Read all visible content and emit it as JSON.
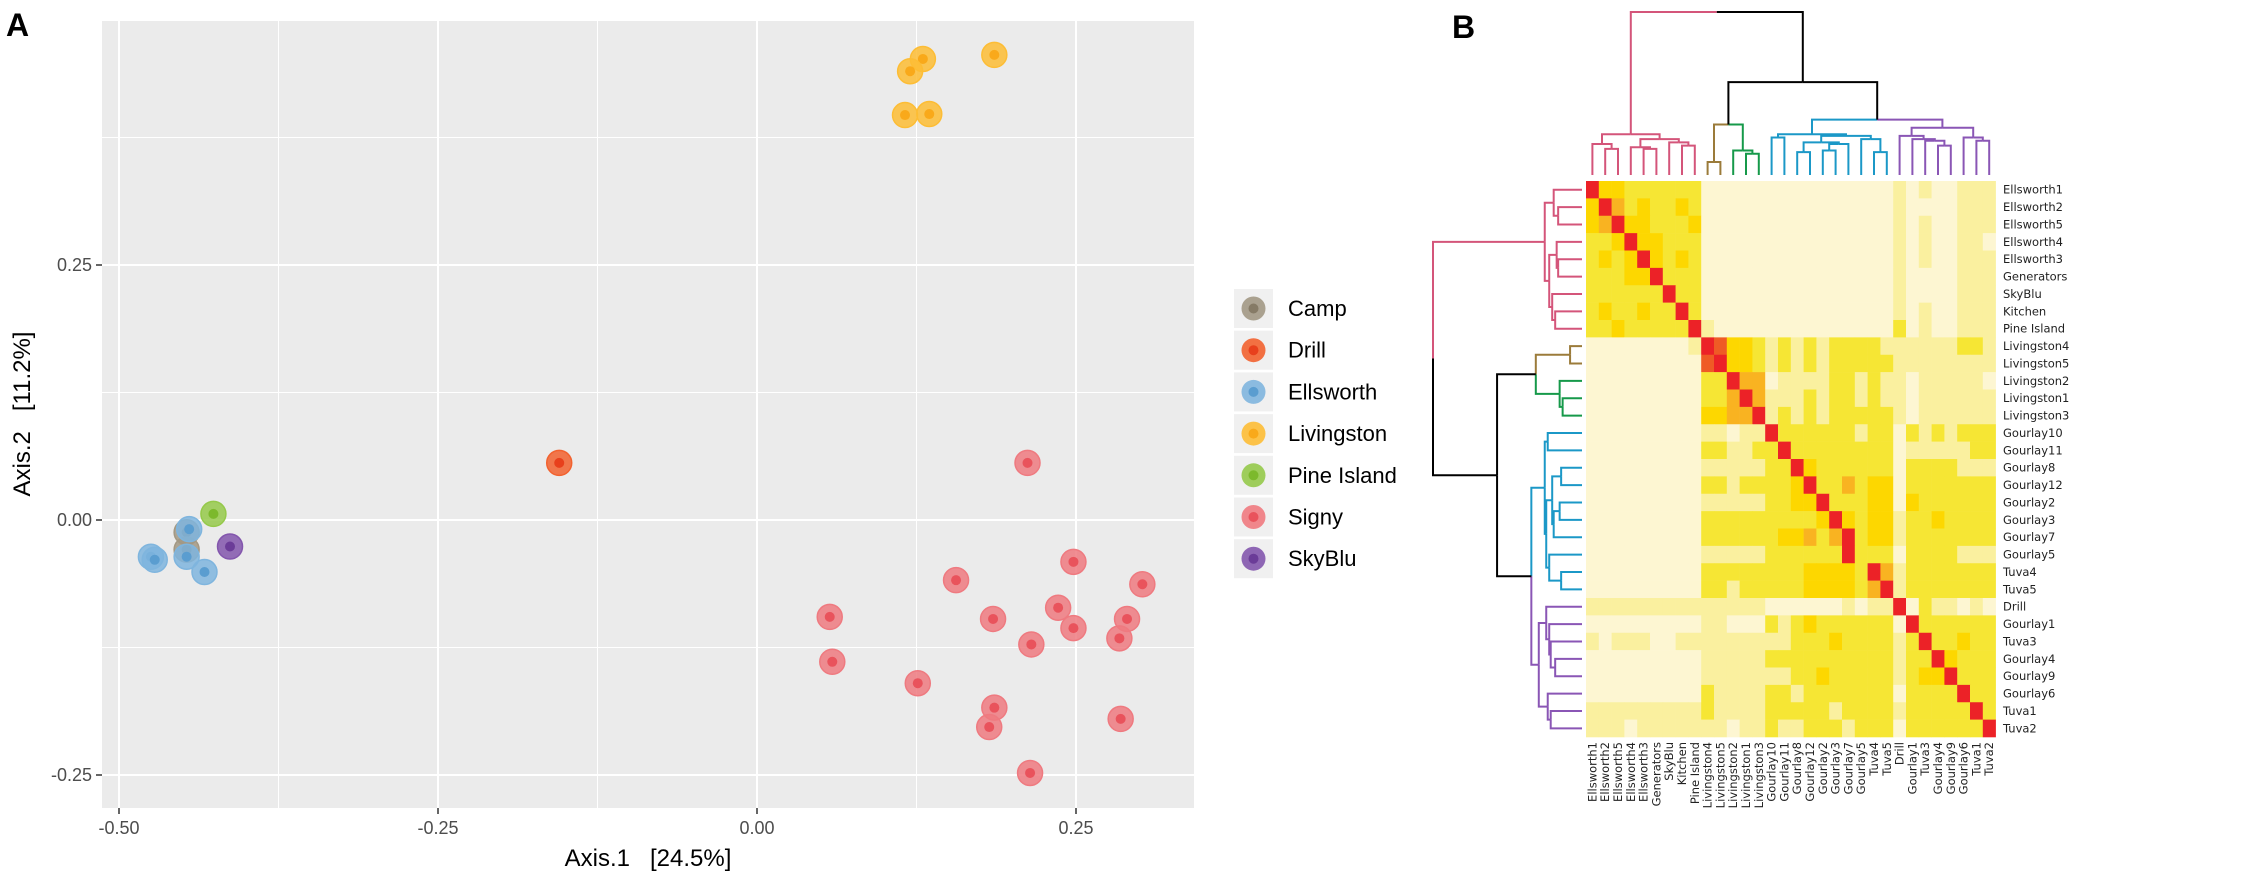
{
  "panels": {
    "a_label": "A",
    "b_label": "B"
  },
  "chart_data": [
    {
      "type": "scatter",
      "title": "",
      "xlabel": "Axis.1   [24.5%]",
      "ylabel": "Axis.2   [11.2%]",
      "xlim": [
        -0.513,
        0.342
      ],
      "ylim": [
        -0.282,
        0.489
      ],
      "grid": true,
      "legend_position": "right",
      "xticks": [
        -0.5,
        -0.25,
        0,
        0.25
      ],
      "xtick_labels": [
        "-0.50",
        "-0.25",
        "0.00",
        "0.25"
      ],
      "yticks": [
        -0.25,
        0,
        0.25
      ],
      "ytick_labels": [
        "-0.25",
        "0.00",
        "0.25"
      ],
      "series": [
        {
          "name": "Camp",
          "color": "#a29884",
          "inner": "#867b66",
          "points": [
            [
              -0.447,
              -0.012
            ],
            [
              -0.447,
              -0.029
            ]
          ]
        },
        {
          "name": "Drill",
          "color": "#f2622f",
          "inner": "#e8401c",
          "points": [
            [
              -0.155,
              0.056
            ]
          ]
        },
        {
          "name": "Ellsworth",
          "color": "#7fb5de",
          "inner": "#5a9dd0",
          "points": [
            [
              -0.445,
              -0.009
            ],
            [
              -0.447,
              -0.036
            ],
            [
              -0.433,
              -0.051
            ],
            [
              -0.475,
              -0.036
            ],
            [
              -0.472,
              -0.039
            ]
          ]
        },
        {
          "name": "Livingston",
          "color": "#fdbd35",
          "inner": "#f9a91a",
          "points": [
            [
              0.186,
              0.456
            ],
            [
              0.13,
              0.452
            ],
            [
              0.12,
              0.44
            ],
            [
              0.116,
              0.397
            ],
            [
              0.135,
              0.398
            ]
          ]
        },
        {
          "name": "Pine Island",
          "color": "#95c94a",
          "inner": "#7cb92c",
          "points": [
            [
              -0.426,
              0.006
            ]
          ]
        },
        {
          "name": "Signy",
          "color": "#ef7a80",
          "inner": "#e9535c",
          "points": [
            [
              0.212,
              0.056
            ],
            [
              0.248,
              -0.041
            ],
            [
              0.302,
              -0.063
            ],
            [
              0.156,
              -0.059
            ],
            [
              0.236,
              -0.086
            ],
            [
              0.057,
              -0.095
            ],
            [
              0.185,
              -0.097
            ],
            [
              0.29,
              -0.097
            ],
            [
              0.248,
              -0.106
            ],
            [
              0.284,
              -0.116
            ],
            [
              0.215,
              -0.122
            ],
            [
              0.059,
              -0.139
            ],
            [
              0.126,
              -0.16
            ],
            [
              0.186,
              -0.184
            ],
            [
              0.182,
              -0.203
            ],
            [
              0.285,
              -0.195
            ],
            [
              0.214,
              -0.248
            ]
          ]
        },
        {
          "name": "SkyBlu",
          "color": "#8356ad",
          "inner": "#6b3c98",
          "points": [
            [
              -0.413,
              -0.026
            ]
          ]
        }
      ]
    },
    {
      "type": "heatmap",
      "labels": [
        "Ellsworth1",
        "Ellsworth2",
        "Ellsworth5",
        "Ellsworth4",
        "Ellsworth3",
        "Generators",
        "SkyBlu",
        "Kitchen",
        "Pine Island",
        "Livingston4",
        "Livingston5",
        "Livingston2",
        "Livingston1",
        "Livingston3",
        "Gourlay10",
        "Gourlay11",
        "Gourlay8",
        "Gourlay12",
        "Gourlay2",
        "Gourlay3",
        "Gourlay7",
        "Gourlay5",
        "Tuva4",
        "Tuva5",
        "Drill",
        "Gourlay1",
        "Tuva3",
        "Gourlay4",
        "Gourlay9",
        "Gourlay6",
        "Tuva1",
        "Tuva2"
      ],
      "level_colors": [
        "#fdf6d2",
        "#faf09f",
        "#f6e634",
        "#fdd700",
        "#f9b321",
        "#ec2227",
        "#ef5b25"
      ],
      "similarity_levels": [
        "53322222200000000000000010100111",
        "35423223200000000000000010000111",
        "34533222300000000000000010100111",
        "22353322200000000000000010100110",
        "23235323200000000000000010100111",
        "22233522200000000000000010000111",
        "22222252200000000000000010000111",
        "23223225200000000000000010100111",
        "22322222510000000000000020100111",
        "00000000156332121212222111111221",
        "00000000065332121212222211111111",
        "00000000022544011112212110111110",
        "00000000022454111212212110111111",
        "00000000033445121212222210111111",
        "00000000011011522222212202121222",
        "00000000022112252222222201111122",
        "00000000011111225322222202222111",
        "00000000022122223522423302222222",
        "00000000011111223352223303222222",
        "00000000022222222235323312232222",
        "00000000022222233424523312222222",
        "00000000011111222222522202222111",
        "00000000022222222333325412222222",
        "00000000022122222333324512222222",
        "11111111111111000000101150211010",
        "00000000011000212322222205222222",
        "10111001111111112223222212522322",
        "00000000011111222222222212253222",
        "00000000011111112232222212335222",
        "00000000021111221222222202222522",
        "11111111121111222221222212222252",
        "11101111111011211222122202222225"
      ],
      "clusters": [
        {
          "name": "pink",
          "color": "#d4557a",
          "from": 0,
          "to": 8
        },
        {
          "name": "brown",
          "color": "#9b7b3a",
          "from": 9,
          "to": 10
        },
        {
          "name": "green",
          "color": "#16994a",
          "from": 11,
          "to": 13
        },
        {
          "name": "blue",
          "color": "#1b98c7",
          "from": 14,
          "to": 23
        },
        {
          "name": "purple",
          "color": "#8a56b5",
          "from": 24,
          "to": 31
        }
      ],
      "dendrogram": [
        1.0,
        [
          0.25,
          [
            0.19,
            0,
            [
              0.16,
              1,
              2
            ]
          ],
          [
            0.22,
            [
              0.17,
              3,
              [
                0.16,
                4,
                5
              ]
            ],
            [
              0.2,
              6,
              [
                0.18,
                7,
                8
              ]
            ]
          ]
        ],
        [
          0.57,
          [
            0.31,
            [
              0.08,
              9,
              10
            ],
            [
              0.15,
              11,
              [
                0.13,
                12,
                13
              ]
            ]
          ],
          [
            0.34,
            [
              0.25,
              [
                0.23,
                14,
                15
              ],
              [
                0.24,
                [
                  0.2,
                  [
                    0.14,
                    16,
                    17
                  ],
                  [
                    0.19,
                    [
                      0.15,
                      18,
                      19
                    ],
                    20
                  ]
                ],
                [
                  0.22,
                  21,
                  [
                    0.14,
                    22,
                    23
                  ]
                ]
              ]
            ],
            [
              0.29,
              [
                0.24,
                24,
                [
                  0.22,
                  25,
                  [
                    0.21,
                    26,
                    [
                      0.18,
                      27,
                      28
                    ]
                  ]
                ]
              ],
              [
                0.23,
                29,
                [
                  0.21,
                  30,
                  31
                ]
              ]
            ]
          ]
        ]
      ]
    }
  ]
}
